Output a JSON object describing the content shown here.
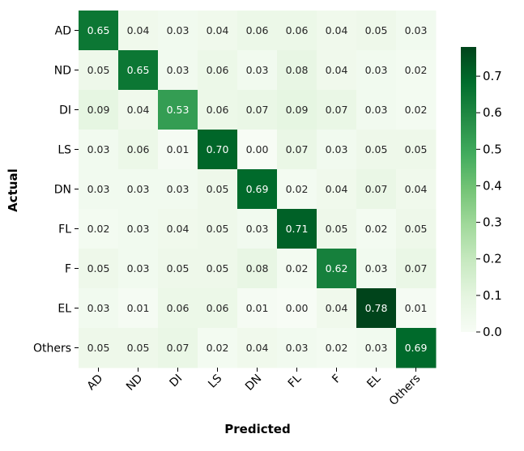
{
  "chart_data": {
    "type": "heatmap",
    "title": "",
    "xlabel": "Predicted",
    "ylabel": "Actual",
    "x_categories": [
      "AD",
      "ND",
      "DI",
      "LS",
      "DN",
      "FL",
      "F",
      "EL",
      "Others"
    ],
    "y_categories": [
      "AD",
      "ND",
      "DI",
      "LS",
      "DN",
      "FL",
      "F",
      "EL",
      "Others"
    ],
    "values": [
      [
        0.65,
        0.04,
        0.03,
        0.04,
        0.06,
        0.06,
        0.04,
        0.05,
        0.03
      ],
      [
        0.05,
        0.65,
        0.03,
        0.06,
        0.03,
        0.08,
        0.04,
        0.03,
        0.02
      ],
      [
        0.09,
        0.04,
        0.53,
        0.06,
        0.07,
        0.09,
        0.07,
        0.03,
        0.02
      ],
      [
        0.03,
        0.06,
        0.01,
        0.7,
        0.0,
        0.07,
        0.03,
        0.05,
        0.05
      ],
      [
        0.03,
        0.03,
        0.03,
        0.05,
        0.69,
        0.02,
        0.04,
        0.07,
        0.04
      ],
      [
        0.02,
        0.03,
        0.04,
        0.05,
        0.03,
        0.71,
        0.05,
        0.02,
        0.05
      ],
      [
        0.05,
        0.03,
        0.05,
        0.05,
        0.08,
        0.02,
        0.62,
        0.03,
        0.07
      ],
      [
        0.03,
        0.01,
        0.06,
        0.06,
        0.01,
        0.0,
        0.04,
        0.78,
        0.01
      ],
      [
        0.05,
        0.05,
        0.07,
        0.02,
        0.04,
        0.03,
        0.02,
        0.03,
        0.69
      ]
    ],
    "colormap": "Greens",
    "colorbar": {
      "range": [
        0.0,
        0.78
      ],
      "ticks": [
        "0.0",
        "0.1",
        "0.2",
        "0.3",
        "0.4",
        "0.5",
        "0.6",
        "0.7"
      ]
    }
  }
}
